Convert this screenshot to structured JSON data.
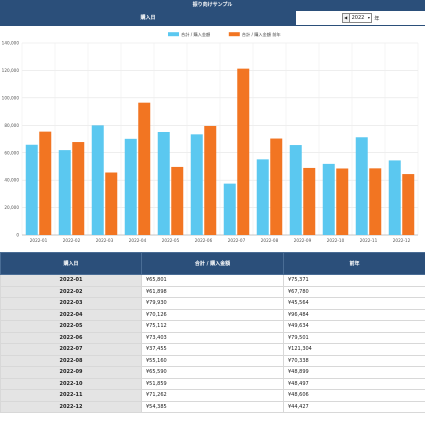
{
  "header": {
    "title": "振り向けサンプル"
  },
  "controls": {
    "tab_label": "購入日",
    "prev_icon": "triangle-left-icon",
    "year_value": "2022",
    "year_unit": "年"
  },
  "colors": {
    "header_bg": "#2b4f7a",
    "series1": "#5bc8f0",
    "series2": "#f27522"
  },
  "chart_data": {
    "type": "bar",
    "categories": [
      "2022-01",
      "2022-02",
      "2022-03",
      "2022-04",
      "2022-05",
      "2022-06",
      "2022-07",
      "2022-08",
      "2022-09",
      "2022-10",
      "2022-11",
      "2022-12"
    ],
    "series": [
      {
        "name": "合計 / 購入金額",
        "color": "#5bc8f0",
        "values": [
          65801,
          61898,
          79930,
          70126,
          75112,
          73403,
          37455,
          55160,
          65590,
          51859,
          71262,
          54385
        ]
      },
      {
        "name": "合計 / 購入金額 前年",
        "color": "#f27522",
        "values": [
          75371,
          67780,
          45564,
          96484,
          49634,
          79501,
          121304,
          70338,
          48899,
          48497,
          48606,
          44427
        ]
      }
    ],
    "yticks": [
      "0",
      "20,000",
      "40,000",
      "60,000",
      "80,000",
      "100,000",
      "120,000",
      "140,000"
    ],
    "ylim": [
      0,
      140000
    ],
    "legend": "top-center",
    "grid": true
  },
  "table": {
    "headers": [
      "購入日",
      "合計 / 購入金額",
      "前年"
    ],
    "rows": [
      [
        "2022-01",
        "¥65,801",
        "¥75,371"
      ],
      [
        "2022-02",
        "¥61,898",
        "¥67,780"
      ],
      [
        "2022-03",
        "¥79,930",
        "¥45,564"
      ],
      [
        "2022-04",
        "¥70,126",
        "¥96,484"
      ],
      [
        "2022-05",
        "¥75,112",
        "¥49,634"
      ],
      [
        "2022-06",
        "¥73,403",
        "¥79,501"
      ],
      [
        "2022-07",
        "¥37,455",
        "¥121,304"
      ],
      [
        "2022-08",
        "¥55,160",
        "¥70,338"
      ],
      [
        "2022-09",
        "¥65,590",
        "¥48,899"
      ],
      [
        "2022-10",
        "¥51,859",
        "¥48,497"
      ],
      [
        "2022-11",
        "¥71,262",
        "¥48,606"
      ],
      [
        "2022-12",
        "¥54,385",
        "¥44,427"
      ]
    ]
  }
}
